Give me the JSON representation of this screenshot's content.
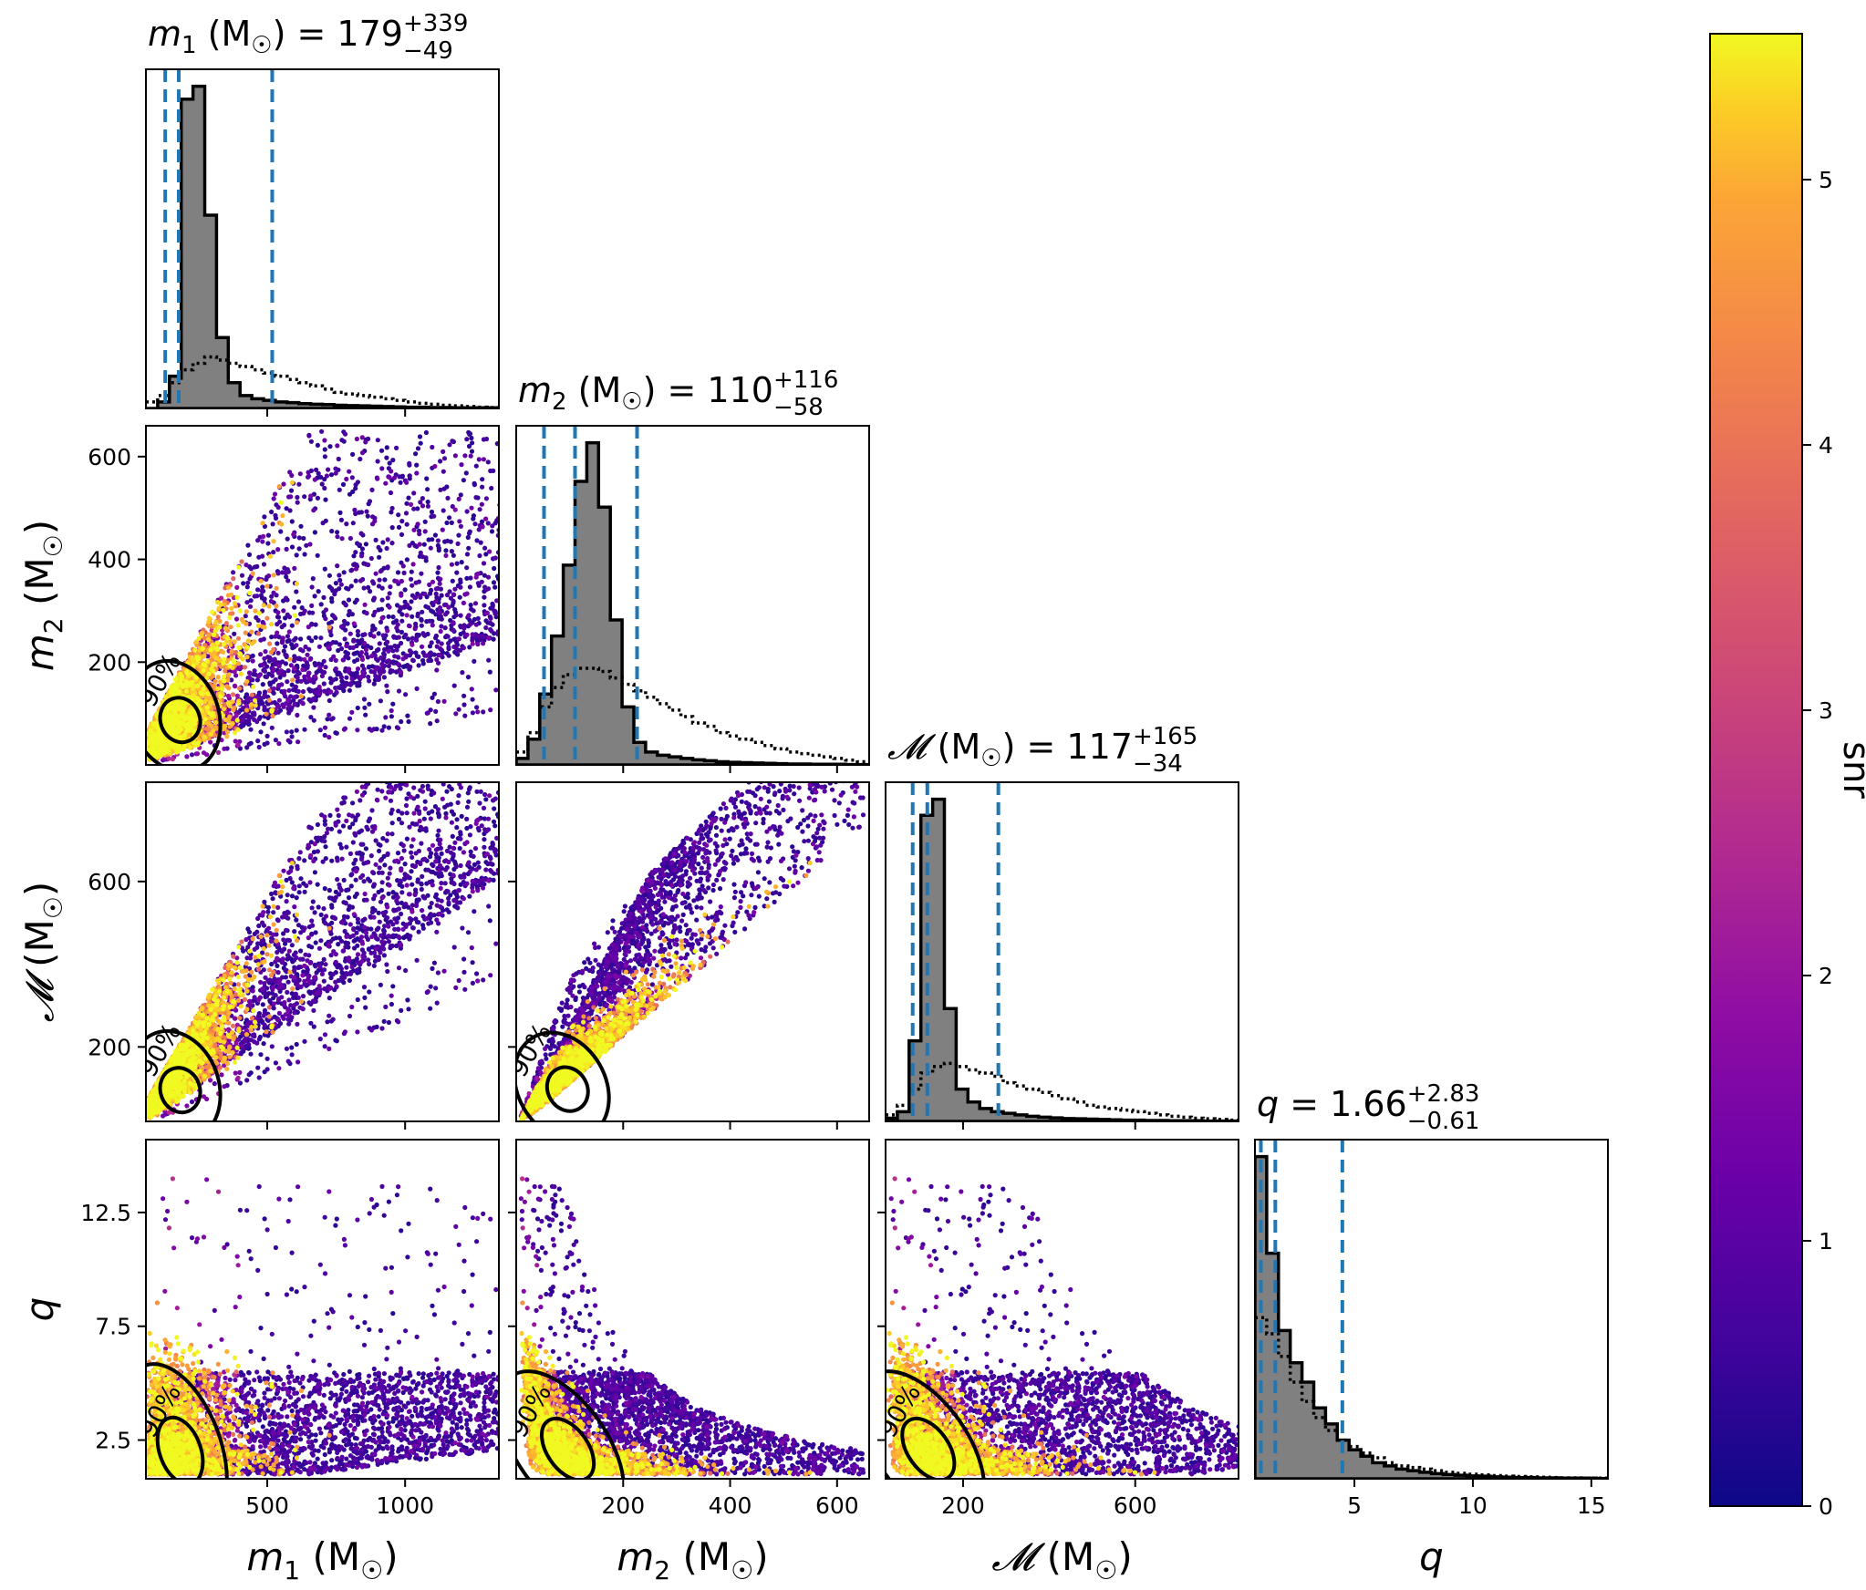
{
  "chart_data": {
    "type": "corner",
    "parameters": [
      {
        "key": "m1",
        "symbol": "m",
        "sub": "1",
        "unit": "(M",
        "unit_sub": "☉",
        "unit_close": ")",
        "title_value": "179",
        "title_plus": "+339",
        "title_minus": "−49",
        "range": [
          60,
          1340
        ],
        "ticks": [
          500,
          1000
        ],
        "tick_labels": [
          "500",
          "1000"
        ],
        "quantiles": [
          130,
          179,
          518
        ],
        "hist_posterior": [
          0.0,
          0.02,
          0.1,
          0.96,
          1.0,
          0.6,
          0.22,
          0.08,
          0.04,
          0.03,
          0.025,
          0.02,
          0.018,
          0.015,
          0.013,
          0.012,
          0.01,
          0.009,
          0.008,
          0.007,
          0.006,
          0.005,
          0.004,
          0.004,
          0.003,
          0.003,
          0.002,
          0.002,
          0.002,
          0.002
        ],
        "hist_prior": [
          0.02,
          0.04,
          0.08,
          0.12,
          0.14,
          0.16,
          0.15,
          0.14,
          0.13,
          0.12,
          0.11,
          0.1,
          0.09,
          0.08,
          0.07,
          0.06,
          0.05,
          0.045,
          0.04,
          0.035,
          0.03,
          0.025,
          0.02,
          0.016,
          0.013,
          0.01,
          0.008,
          0.006,
          0.004,
          0.003
        ]
      },
      {
        "key": "m2",
        "symbol": "m",
        "sub": "2",
        "unit": "(M",
        "unit_sub": "☉",
        "unit_close": ")",
        "title_value": "110",
        "title_plus": "+116",
        "title_minus": "−58",
        "range": [
          0,
          660
        ],
        "ticks": [
          200,
          400,
          600
        ],
        "tick_labels": [
          "200",
          "400",
          "600"
        ],
        "quantiles": [
          52,
          110,
          226
        ],
        "hist_posterior": [
          0.02,
          0.08,
          0.22,
          0.4,
          0.62,
          0.88,
          1.0,
          0.8,
          0.45,
          0.18,
          0.07,
          0.04,
          0.03,
          0.025,
          0.02,
          0.016,
          0.013,
          0.01,
          0.008,
          0.007,
          0.006,
          0.005,
          0.004,
          0.003,
          0.003,
          0.002,
          0.002,
          0.002,
          0.001,
          0.001
        ],
        "hist_prior": [
          0.04,
          0.1,
          0.18,
          0.24,
          0.28,
          0.3,
          0.3,
          0.29,
          0.27,
          0.25,
          0.23,
          0.21,
          0.19,
          0.17,
          0.15,
          0.13,
          0.12,
          0.1,
          0.09,
          0.08,
          0.07,
          0.06,
          0.05,
          0.04,
          0.035,
          0.03,
          0.025,
          0.02,
          0.015,
          0.01
        ]
      },
      {
        "key": "Mc",
        "symbol": "𝓜",
        "sub": "",
        "unit": "(M",
        "unit_sub": "☉",
        "unit_close": ")",
        "title_value": "117",
        "title_plus": "+165",
        "title_minus": "−34",
        "range": [
          20,
          840
        ],
        "ticks": [
          200,
          600
        ],
        "tick_labels": [
          "200",
          "600"
        ],
        "quantiles": [
          83,
          117,
          282
        ],
        "hist_posterior": [
          0.01,
          0.03,
          0.25,
          0.95,
          1.0,
          0.35,
          0.1,
          0.06,
          0.04,
          0.03,
          0.025,
          0.02,
          0.016,
          0.013,
          0.011,
          0.009,
          0.008,
          0.007,
          0.006,
          0.005,
          0.004,
          0.004,
          0.003,
          0.003,
          0.002,
          0.002,
          0.002,
          0.001,
          0.001,
          0.001
        ],
        "hist_prior": [
          0.02,
          0.05,
          0.1,
          0.15,
          0.17,
          0.18,
          0.17,
          0.16,
          0.15,
          0.14,
          0.12,
          0.11,
          0.1,
          0.09,
          0.08,
          0.07,
          0.06,
          0.05,
          0.045,
          0.04,
          0.035,
          0.03,
          0.025,
          0.02,
          0.016,
          0.013,
          0.01,
          0.008,
          0.006,
          0.004
        ]
      },
      {
        "key": "q",
        "symbol": "q",
        "sub": "",
        "unit": "",
        "unit_sub": "",
        "unit_close": "",
        "title_value": "1.66",
        "title_plus": "+2.83",
        "title_minus": "−0.61",
        "range": [
          0.8,
          15.7
        ],
        "ticks": [
          2.5,
          5,
          7.5,
          10,
          12.5,
          15
        ],
        "tick_labels": [
          "2.5",
          "5",
          "7.5",
          "10",
          "12.5",
          "15"
        ],
        "quantiles": [
          1.05,
          1.66,
          4.49
        ],
        "hist_posterior": [
          1.0,
          0.7,
          0.46,
          0.36,
          0.3,
          0.22,
          0.17,
          0.12,
          0.09,
          0.07,
          0.05,
          0.04,
          0.03,
          0.025,
          0.02,
          0.016,
          0.013,
          0.011,
          0.009,
          0.008,
          0.006,
          0.005,
          0.004,
          0.004,
          0.003,
          0.003,
          0.002,
          0.002,
          0.002,
          0.001
        ],
        "hist_prior": [
          0.5,
          0.45,
          0.38,
          0.3,
          0.24,
          0.19,
          0.15,
          0.12,
          0.1,
          0.08,
          0.065,
          0.05,
          0.04,
          0.035,
          0.03,
          0.025,
          0.02,
          0.017,
          0.014,
          0.012,
          0.01,
          0.008,
          0.007,
          0.006,
          0.005,
          0.004,
          0.003,
          0.003,
          0.002,
          0.002
        ]
      }
    ],
    "y_axis_ticks": {
      "m2": {
        "ticks": [
          200,
          400,
          600
        ],
        "labels": [
          "200",
          "400",
          "600"
        ]
      },
      "Mc": {
        "ticks": [
          200,
          600
        ],
        "labels": [
          "200",
          "600"
        ]
      },
      "q": {
        "ticks": [
          2.5,
          7.5,
          12.5
        ],
        "labels": [
          "2.5",
          "7.5",
          "12.5"
        ]
      }
    },
    "x_axis_ticks": {
      "m1": {
        "ticks": [
          500,
          1000
        ],
        "labels": [
          "500",
          "1000"
        ]
      },
      "m2": {
        "ticks": [
          200,
          400,
          600
        ],
        "labels": [
          "200",
          "400",
          "600"
        ]
      },
      "Mc": {
        "ticks": [
          200,
          600
        ],
        "labels": [
          "200",
          "600"
        ]
      },
      "q": {
        "ticks": [
          5,
          10,
          15
        ],
        "labels": [
          "5",
          "10",
          "15"
        ]
      }
    },
    "contour_label": "90%",
    "colorbar": {
      "label": "snr",
      "range": [
        0,
        5.55
      ],
      "ticks": [
        0,
        1,
        2,
        3,
        4,
        5
      ],
      "tick_labels": [
        "0",
        "1",
        "2",
        "3",
        "4",
        "5"
      ],
      "colormap": "plasma"
    },
    "colors": {
      "hist_fill": "#808080",
      "quantile_line": "#1f77b4",
      "contour": "#000000"
    }
  }
}
